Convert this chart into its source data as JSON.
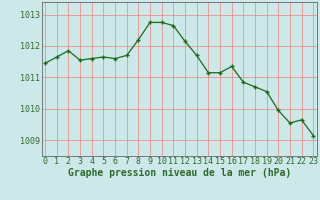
{
  "x": [
    0,
    1,
    2,
    3,
    4,
    5,
    6,
    7,
    8,
    9,
    10,
    11,
    12,
    13,
    14,
    15,
    16,
    17,
    18,
    19,
    20,
    21,
    22,
    23
  ],
  "y": [
    1011.45,
    1011.65,
    1011.85,
    1011.55,
    1011.6,
    1011.65,
    1011.6,
    1011.7,
    1012.2,
    1012.75,
    1012.75,
    1012.65,
    1012.15,
    1011.7,
    1011.15,
    1011.15,
    1011.35,
    1010.85,
    1010.7,
    1010.55,
    1009.95,
    1009.55,
    1009.65,
    1009.15
  ],
  "line_color": "#1a6b1a",
  "marker_color": "#1a6b1a",
  "bg_color": "#cce8e8",
  "grid_color": "#f08080",
  "xlabel": "Graphe pression niveau de la mer (hPa)",
  "ytick_labels": [
    "1009",
    "1010",
    "1011",
    "1012",
    "1013"
  ],
  "ytick_vals": [
    1009,
    1010,
    1011,
    1012,
    1013
  ],
  "xtick_labels": [
    "0",
    "1",
    "2",
    "3",
    "4",
    "5",
    "6",
    "7",
    "8",
    "9",
    "10",
    "11",
    "12",
    "13",
    "14",
    "15",
    "16",
    "17",
    "18",
    "19",
    "20",
    "21",
    "22",
    "23"
  ],
  "xtick_vals": [
    0,
    1,
    2,
    3,
    4,
    5,
    6,
    7,
    8,
    9,
    10,
    11,
    12,
    13,
    14,
    15,
    16,
    17,
    18,
    19,
    20,
    21,
    22,
    23
  ],
  "ylim": [
    1008.5,
    1013.4
  ],
  "xlim": [
    -0.3,
    23.3
  ],
  "tick_color": "#2d6a2d",
  "label_fontsize": 6.0,
  "xlabel_fontsize": 7.0
}
